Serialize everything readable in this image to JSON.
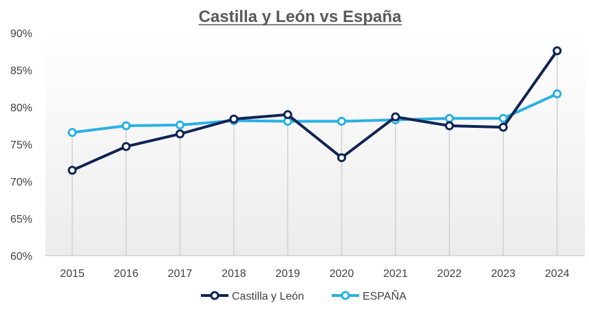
{
  "chart_data": {
    "type": "line",
    "title": "Castilla y León vs España",
    "categories": [
      "2015",
      "2016",
      "2017",
      "2018",
      "2019",
      "2020",
      "2021",
      "2022",
      "2023",
      "2024"
    ],
    "series": [
      {
        "name": "Castilla y León",
        "color": "#0f2354",
        "values": [
          71.5,
          74.7,
          76.4,
          78.4,
          79.0,
          73.2,
          78.7,
          77.5,
          77.3,
          87.6
        ]
      },
      {
        "name": "ESPAÑA",
        "color": "#29b1e3",
        "values": [
          76.6,
          77.5,
          77.6,
          78.2,
          78.1,
          78.1,
          78.3,
          78.5,
          78.5,
          81.8
        ]
      }
    ],
    "ylim": [
      60,
      90
    ],
    "yticks": [
      "60%",
      "65%",
      "70%",
      "75%",
      "80%",
      "85%",
      "90%"
    ],
    "ytick_values": [
      60,
      65,
      70,
      75,
      80,
      85,
      90
    ],
    "grid": "vertical drop lines per category",
    "legend_position": "bottom-center"
  }
}
